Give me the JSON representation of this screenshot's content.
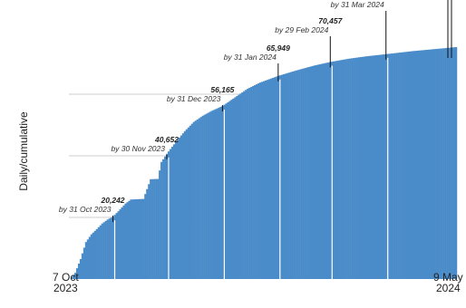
{
  "header": {
    "link_text": ""
  },
  "chart_data": {
    "type": "bar",
    "ylabel": "Daily/cumulative",
    "x_start": "2023-10-07",
    "x_end": "2024-05-09",
    "x_tick_labels": [
      {
        "day": "7 Oct",
        "year": "2023"
      },
      {
        "day": "9 May",
        "year": "2024"
      }
    ],
    "ylim": [
      0,
      82000
    ],
    "grid": true,
    "color": "#4a8cc9",
    "annotations": [
      {
        "date": "2023-10-31",
        "value": "20,242",
        "label": "by 31 Oct 2023"
      },
      {
        "date": "2023-11-30",
        "value": "40,652",
        "label": "by 30 Nov 2023"
      },
      {
        "date": "2023-12-31",
        "value": "56,165",
        "label": "by 31 Dec 2023"
      },
      {
        "date": "2024-01-31",
        "value": "65,949",
        "label": "by 31 Jan 2024"
      },
      {
        "date": "2024-02-29",
        "value": "70,457",
        "label": "by 29 Feb 2024"
      },
      {
        "date": "2024-03-31",
        "value": "",
        "label": "by 31 Mar 2024"
      }
    ],
    "anchor_points": [
      [
        "2023-10-07",
        0
      ],
      [
        "2023-10-10",
        2000
      ],
      [
        "2023-10-13",
        6500
      ],
      [
        "2023-10-16",
        12000
      ],
      [
        "2023-10-19",
        14500
      ],
      [
        "2023-10-22",
        16200
      ],
      [
        "2023-10-25",
        18000
      ],
      [
        "2023-10-28",
        19300
      ],
      [
        "2023-10-31",
        20242
      ],
      [
        "2023-11-03",
        22000
      ],
      [
        "2023-11-07",
        24500
      ],
      [
        "2023-11-10",
        25800
      ],
      [
        "2023-11-13",
        25900
      ],
      [
        "2023-11-17",
        26000
      ],
      [
        "2023-11-21",
        32400
      ],
      [
        "2023-11-25",
        32500
      ],
      [
        "2023-11-27",
        38000
      ],
      [
        "2023-11-30",
        40652
      ],
      [
        "2023-12-05",
        44500
      ],
      [
        "2023-12-10",
        48000
      ],
      [
        "2023-12-15",
        51000
      ],
      [
        "2023-12-20",
        53000
      ],
      [
        "2023-12-25",
        54600
      ],
      [
        "2023-12-31",
        56165
      ],
      [
        "2024-01-07",
        59000
      ],
      [
        "2024-01-14",
        61800
      ],
      [
        "2024-01-21",
        63800
      ],
      [
        "2024-01-31",
        65949
      ],
      [
        "2024-02-10",
        67700
      ],
      [
        "2024-02-20",
        69300
      ],
      [
        "2024-02-29",
        70457
      ],
      [
        "2024-03-10",
        71500
      ],
      [
        "2024-03-20",
        72300
      ],
      [
        "2024-03-31",
        73000
      ],
      [
        "2024-04-15",
        74000
      ],
      [
        "2024-04-30",
        74800
      ],
      [
        "2024-05-09",
        75300
      ]
    ]
  }
}
